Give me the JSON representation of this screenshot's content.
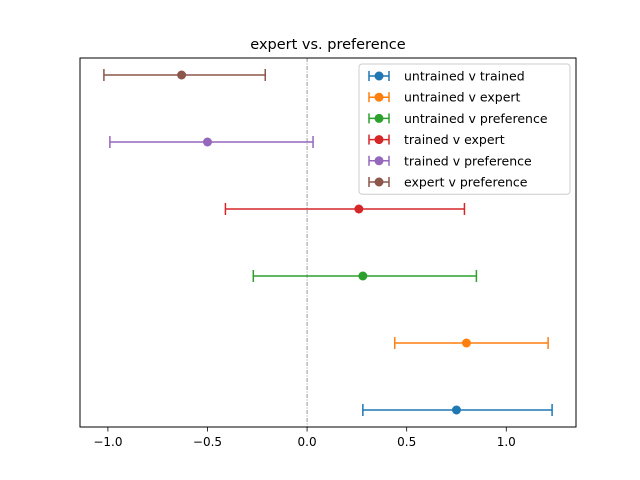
{
  "chart_data": {
    "type": "scatter",
    "title": "expert vs. preference",
    "xlabel": "",
    "ylabel": "",
    "xlim": [
      -1.14,
      1.35
    ],
    "x_ticks": [
      -1.0,
      -0.5,
      0.0,
      0.5,
      1.0
    ],
    "x_tick_labels": [
      "−1.0",
      "−0.5",
      "0.0",
      "0.5",
      "1.0"
    ],
    "y_ticks_visible": false,
    "grid": false,
    "reference_line": {
      "x": 0.0,
      "style": "dash-dot",
      "color": "#7f7f7f"
    },
    "legend_position": "top-right",
    "series": [
      {
        "name": "untrained v trained",
        "x": 0.75,
        "lower": 0.28,
        "upper": 1.23,
        "color": "#1f77b4"
      },
      {
        "name": "untrained v expert",
        "x": 0.8,
        "lower": 0.44,
        "upper": 1.21,
        "color": "#ff7f0e"
      },
      {
        "name": "untrained v preference",
        "x": 0.28,
        "lower": -0.27,
        "upper": 0.85,
        "color": "#2ca02c"
      },
      {
        "name": "trained v expert",
        "x": 0.26,
        "lower": -0.41,
        "upper": 0.79,
        "color": "#d62728"
      },
      {
        "name": "trained v preference",
        "x": -0.5,
        "lower": -0.99,
        "upper": 0.03,
        "color": "#9467bd"
      },
      {
        "name": "expert v preference",
        "x": -0.63,
        "lower": -1.02,
        "upper": -0.21,
        "color": "#8c564b"
      }
    ]
  }
}
